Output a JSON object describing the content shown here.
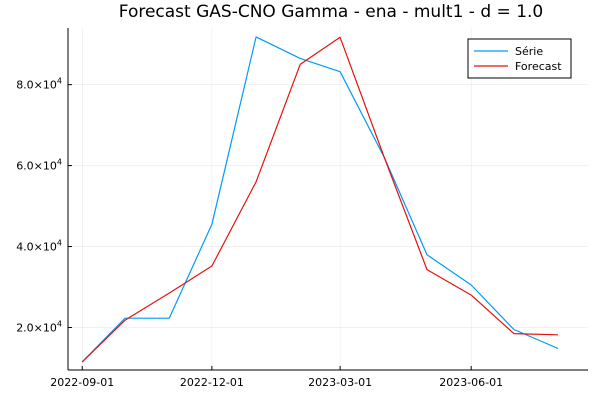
{
  "chart_data": {
    "type": "line",
    "title": "Forecast GAS-CNO Gamma - ena - mult1 - d = 1.0",
    "xlabel": "",
    "ylabel": "",
    "x": [
      "2022-09-01",
      "2022-10-01",
      "2022-11-01",
      "2022-12-01",
      "2023-01-01",
      "2023-02-01",
      "2023-03-01",
      "2023-04-01",
      "2023-05-01",
      "2023-06-01",
      "2023-07-01",
      "2023-08-01"
    ],
    "xlim": [
      "2022-08-22",
      "2023-08-22"
    ],
    "ylim": [
      9500,
      94000
    ],
    "x_ticks": [
      {
        "date": "2022-09-01",
        "label": "2022-09-01"
      },
      {
        "date": "2022-12-01",
        "label": "2022-12-01"
      },
      {
        "date": "2023-03-01",
        "label": "2023-03-01"
      },
      {
        "date": "2023-06-01",
        "label": "2023-06-01"
      }
    ],
    "y_ticks": [
      {
        "value": 20000,
        "mant": "2.0",
        "exp": "4"
      },
      {
        "value": 40000,
        "mant": "4.0",
        "exp": "4"
      },
      {
        "value": 60000,
        "mant": "6.0",
        "exp": "4"
      },
      {
        "value": 80000,
        "mant": "8.0",
        "exp": "4"
      }
    ],
    "grid": true,
    "legend_position": "top-right",
    "series": [
      {
        "name": "Série",
        "color": "#009AFA",
        "values": [
          11500,
          22300,
          22300,
          45500,
          91800,
          86500,
          83200,
          62000,
          38000,
          30500,
          19500,
          14800
        ]
      },
      {
        "name": "Forecast",
        "color": "#E5120B",
        "values": [
          11500,
          21800,
          28500,
          35200,
          56000,
          85000,
          91700,
          62000,
          34300,
          28000,
          18500,
          18200
        ]
      }
    ]
  }
}
